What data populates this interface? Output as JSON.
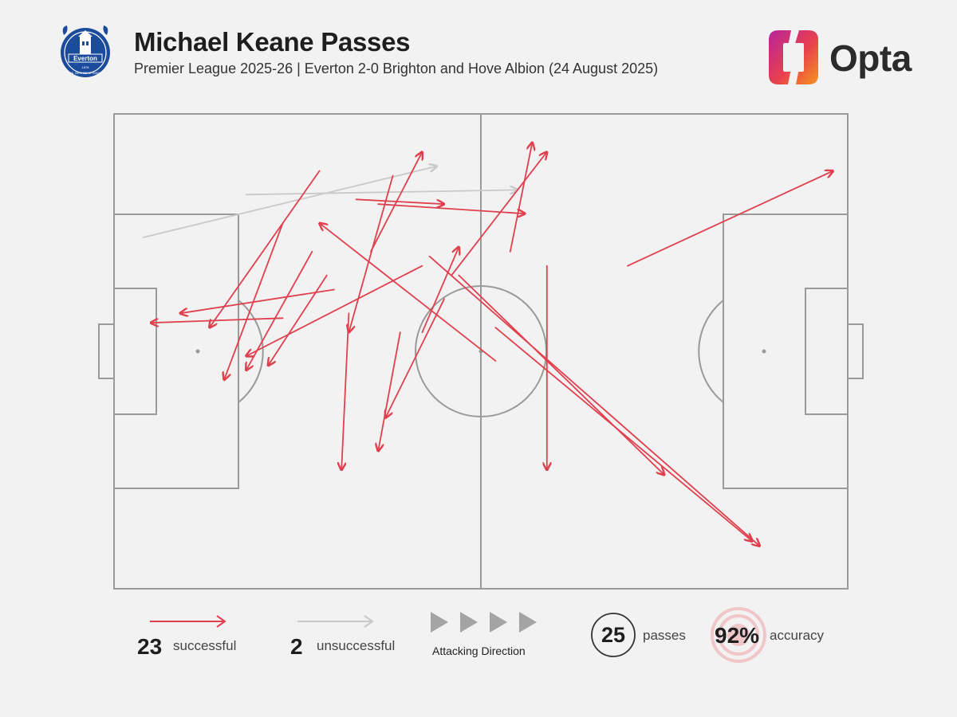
{
  "header": {
    "title": "Michael Keane Passes",
    "subtitle": "Premier League 2025-26 | Everton 2-0 Brighton and Hove Albion (24 August 2025)",
    "club_crest_text": "Everton",
    "club_crest_year": "1878",
    "club_crest_motto": "NIL SATIS NISI OPTIMUM",
    "brand": "Opta"
  },
  "colors": {
    "successful": "#e0404e",
    "unsuccessful": "#c9c9c9",
    "pitch_line": "#9a9a9a",
    "background": "#f2f2f2",
    "everton_blue": "#1b4b9b"
  },
  "chart_data": {
    "type": "pass-map",
    "attacking_direction": "left-to-right",
    "pitch": {
      "length": 100,
      "width": 100
    },
    "passes": [
      {
        "x1": 4,
        "y1": 74,
        "x2": 44,
        "y2": 89,
        "outcome": "unsuccessful"
      },
      {
        "x1": 18,
        "y1": 83,
        "x2": 55,
        "y2": 84,
        "outcome": "unsuccessful"
      },
      {
        "x1": 70,
        "y1": 68,
        "x2": 98,
        "y2": 88,
        "outcome": "successful"
      },
      {
        "x1": 28,
        "y1": 88,
        "x2": 13,
        "y2": 55,
        "outcome": "successful"
      },
      {
        "x1": 23,
        "y1": 77,
        "x2": 15,
        "y2": 44,
        "outcome": "successful"
      },
      {
        "x1": 27,
        "y1": 71,
        "x2": 18,
        "y2": 46,
        "outcome": "successful"
      },
      {
        "x1": 38,
        "y1": 87,
        "x2": 32,
        "y2": 54,
        "outcome": "successful"
      },
      {
        "x1": 35,
        "y1": 71,
        "x2": 42,
        "y2": 92,
        "outcome": "successful"
      },
      {
        "x1": 33,
        "y1": 82,
        "x2": 45,
        "y2": 81,
        "outcome": "successful"
      },
      {
        "x1": 36,
        "y1": 81,
        "x2": 56,
        "y2": 79,
        "outcome": "successful"
      },
      {
        "x1": 46,
        "y1": 66,
        "x2": 59,
        "y2": 92,
        "outcome": "successful"
      },
      {
        "x1": 54,
        "y1": 71,
        "x2": 57,
        "y2": 94,
        "outcome": "successful"
      },
      {
        "x1": 45,
        "y1": 61,
        "x2": 37,
        "y2": 36,
        "outcome": "successful"
      },
      {
        "x1": 42,
        "y1": 68,
        "x2": 18,
        "y2": 49,
        "outcome": "successful"
      },
      {
        "x1": 29,
        "y1": 66,
        "x2": 21,
        "y2": 47,
        "outcome": "successful"
      },
      {
        "x1": 30,
        "y1": 63,
        "x2": 9,
        "y2": 58,
        "outcome": "successful"
      },
      {
        "x1": 23,
        "y1": 57,
        "x2": 5,
        "y2": 56,
        "outcome": "successful"
      },
      {
        "x1": 32,
        "y1": 58,
        "x2": 31,
        "y2": 25,
        "outcome": "successful"
      },
      {
        "x1": 39,
        "y1": 54,
        "x2": 36,
        "y2": 29,
        "outcome": "successful"
      },
      {
        "x1": 42,
        "y1": 54,
        "x2": 47,
        "y2": 72,
        "outcome": "successful"
      },
      {
        "x1": 59,
        "y1": 68,
        "x2": 59,
        "y2": 25,
        "outcome": "successful"
      },
      {
        "x1": 52,
        "y1": 55,
        "x2": 87,
        "y2": 10,
        "outcome": "successful"
      },
      {
        "x1": 47,
        "y1": 66,
        "x2": 75,
        "y2": 24,
        "outcome": "successful"
      },
      {
        "x1": 43,
        "y1": 70,
        "x2": 88,
        "y2": 9,
        "outcome": "successful"
      },
      {
        "x1": 52,
        "y1": 48,
        "x2": 28,
        "y2": 77,
        "outcome": "successful"
      }
    ]
  },
  "legend": {
    "successful_count": "23",
    "successful_label": "successful",
    "unsuccessful_count": "2",
    "unsuccessful_label": "unsuccessful",
    "direction_label": "Attacking Direction",
    "passes_count": "25",
    "passes_label": "passes",
    "accuracy_value": "92%",
    "accuracy_label": "accuracy"
  }
}
